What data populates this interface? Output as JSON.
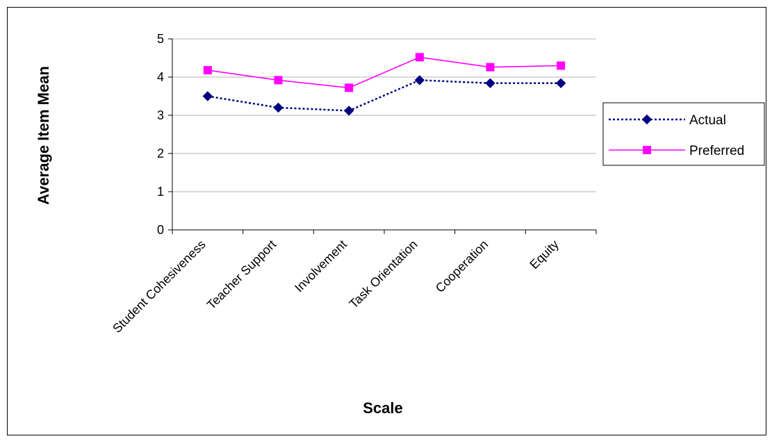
{
  "chart_data": {
    "type": "line",
    "title": "",
    "xlabel": "Scale",
    "ylabel": "Average Item Mean",
    "categories": [
      "Student Cohesiveness",
      "Teacher Support",
      "Involvement",
      "Task Orientation",
      "Cooperation",
      "Equity"
    ],
    "ylim": [
      0,
      5
    ],
    "yticks": [
      "0",
      "1",
      "2",
      "3",
      "4",
      "5"
    ],
    "grid": true,
    "legend_position": "right",
    "series": [
      {
        "name": "Actual",
        "values": [
          3.5,
          3.2,
          3.12,
          3.92,
          3.84,
          3.84
        ],
        "color": "#000080",
        "line_style": "dotted",
        "marker": "diamond"
      },
      {
        "name": "Preferred",
        "values": [
          4.18,
          3.92,
          3.72,
          4.52,
          4.26,
          4.3
        ],
        "color": "#ff00ff",
        "line_style": "solid",
        "marker": "square"
      }
    ]
  }
}
